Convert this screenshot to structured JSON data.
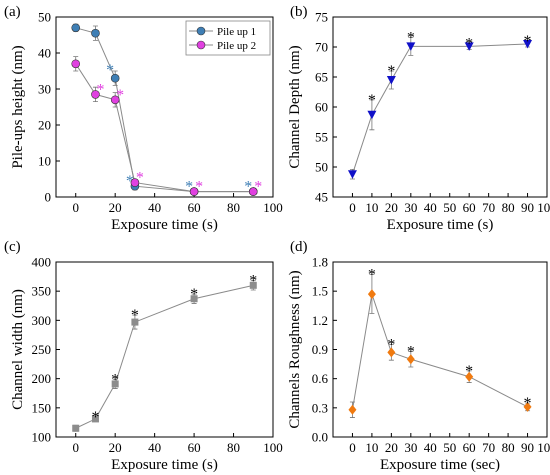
{
  "chart_data": [
    {
      "id": "a",
      "panel_label": "(a)",
      "type": "scatter",
      "xlabel": "Exposure time (s)",
      "ylabel": "Pile-ups height (nm)",
      "xlim": [
        -10,
        100
      ],
      "ylim": [
        0,
        50
      ],
      "xticks": [
        "0",
        "20",
        "40",
        "60",
        "80",
        "100"
      ],
      "yticks": [
        "0",
        "10",
        "20",
        "30",
        "40",
        "50"
      ],
      "legend_position": "top-right",
      "series": [
        {
          "name": "Pile up 1",
          "color": "#3F7FB5",
          "marker": "circle",
          "x": [
            0,
            10,
            20,
            30,
            60,
            90
          ],
          "y": [
            47,
            45.5,
            33,
            3,
            1.5,
            1.5
          ],
          "err": [
            1,
            2,
            2,
            1,
            0.5,
            0.5
          ],
          "sig": [
            false,
            false,
            true,
            true,
            true,
            true
          ]
        },
        {
          "name": "Pile up 2",
          "color": "#E040E0",
          "marker": "circle",
          "x": [
            0,
            10,
            20,
            30,
            60,
            90
          ],
          "y": [
            37,
            28.5,
            27,
            4,
            1.5,
            1.5
          ],
          "err": [
            2,
            2,
            2,
            0.5,
            0.5,
            0.5
          ],
          "sig": [
            false,
            true,
            true,
            true,
            true,
            true
          ]
        }
      ]
    },
    {
      "id": "b",
      "panel_label": "(b)",
      "type": "line",
      "xlabel": "Exposure time (s)",
      "ylabel": "Channel Depth (nm)",
      "xlim": [
        -10,
        100
      ],
      "ylim": [
        45,
        75
      ],
      "xticks": [
        "0",
        "10",
        "20",
        "30",
        "40",
        "50",
        "60",
        "70",
        "80",
        "90",
        "100"
      ],
      "yticks": [
        "45",
        "50",
        "55",
        "60",
        "65",
        "70",
        "75"
      ],
      "series": [
        {
          "color": "#1010C8",
          "marker": "triangle-down",
          "x": [
            0,
            10,
            20,
            30,
            60,
            90
          ],
          "y": [
            48.8,
            58.7,
            64.5,
            70.1,
            70.1,
            70.5
          ],
          "err": [
            0.8,
            2.5,
            1.5,
            1.5,
            0.5,
            0.5
          ],
          "sig": [
            false,
            true,
            true,
            true,
            true,
            true
          ]
        }
      ]
    },
    {
      "id": "c",
      "panel_label": "(c)",
      "type": "line",
      "xlabel": "Exposure time (s)",
      "ylabel": "Channel width (nm)",
      "xlim": [
        -10,
        100
      ],
      "ylim": [
        100,
        400
      ],
      "xticks": [
        "0",
        "20",
        "40",
        "60",
        "80",
        "100"
      ],
      "yticks": [
        "100",
        "150",
        "200",
        "250",
        "300",
        "350",
        "400"
      ],
      "series": [
        {
          "color": "#8C8C8C",
          "marker": "square",
          "x": [
            0,
            10,
            20,
            30,
            60,
            90
          ],
          "y": [
            115,
            131,
            191,
            297,
            337,
            360
          ],
          "err": [
            5,
            3,
            8,
            12,
            8,
            8
          ],
          "sig": [
            false,
            true,
            true,
            true,
            true,
            true
          ]
        }
      ]
    },
    {
      "id": "d",
      "panel_label": "(d)",
      "type": "line",
      "xlabel": "Exposure time (sec)",
      "ylabel": "Channels Roughness (nm)",
      "xlim": [
        -10,
        100
      ],
      "ylim": [
        0,
        1.8
      ],
      "xticks": [
        "0",
        "10",
        "20",
        "30",
        "40",
        "50",
        "60",
        "70",
        "80",
        "90",
        "100"
      ],
      "yticks": [
        "0.0",
        "0.3",
        "0.6",
        "0.9",
        "1.2",
        "1.5",
        "1.8"
      ],
      "series": [
        {
          "color": "#F07A10",
          "marker": "diamond",
          "x": [
            0,
            10,
            20,
            30,
            60,
            90
          ],
          "y": [
            0.28,
            1.47,
            0.87,
            0.8,
            0.62,
            0.31
          ],
          "err": [
            0.08,
            0.2,
            0.08,
            0.08,
            0.06,
            0.04
          ],
          "sig": [
            false,
            true,
            true,
            true,
            true,
            true
          ]
        }
      ]
    }
  ]
}
